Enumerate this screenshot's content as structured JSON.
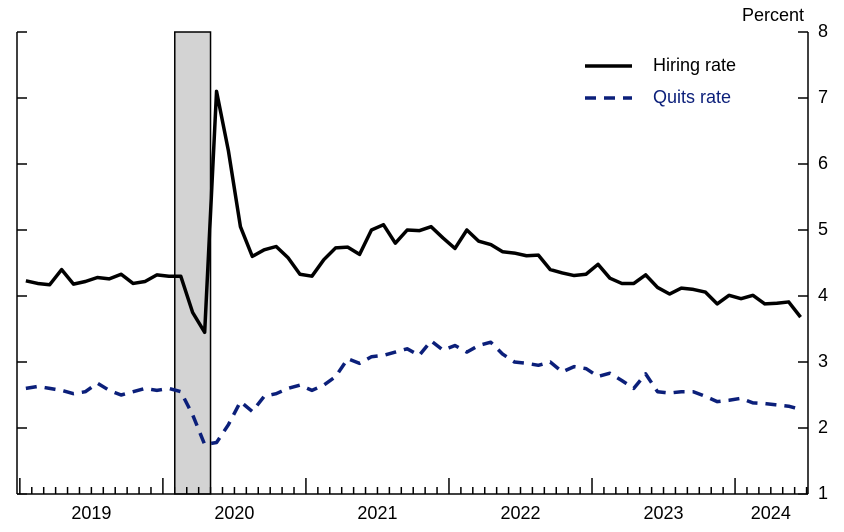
{
  "chart_data": {
    "type": "line",
    "y_axis_label": "Percent",
    "x": [
      2019.042,
      2019.125,
      2019.208,
      2019.292,
      2019.375,
      2019.458,
      2019.542,
      2019.625,
      2019.708,
      2019.792,
      2019.875,
      2019.958,
      2020.042,
      2020.125,
      2020.208,
      2020.292,
      2020.375,
      2020.458,
      2020.542,
      2020.625,
      2020.708,
      2020.792,
      2020.875,
      2020.958,
      2021.042,
      2021.125,
      2021.208,
      2021.292,
      2021.375,
      2021.458,
      2021.542,
      2021.625,
      2021.708,
      2021.792,
      2021.875,
      2021.958,
      2022.042,
      2022.125,
      2022.208,
      2022.292,
      2022.375,
      2022.458,
      2022.542,
      2022.625,
      2022.708,
      2022.792,
      2022.875,
      2022.958,
      2023.042,
      2023.125,
      2023.208,
      2023.292,
      2023.375,
      2023.458,
      2023.542,
      2023.625,
      2023.708,
      2023.792,
      2023.875,
      2023.958,
      2024.042,
      2024.125,
      2024.208,
      2024.292,
      2024.375,
      2024.458
    ],
    "series": [
      {
        "name": "Hiring rate",
        "color": "#000000",
        "dash": false,
        "values": [
          4.23,
          4.19,
          4.17,
          4.4,
          4.18,
          4.22,
          4.28,
          4.26,
          4.33,
          4.19,
          4.22,
          4.32,
          4.3,
          4.3,
          3.75,
          3.45,
          7.1,
          6.2,
          5.05,
          4.6,
          4.7,
          4.75,
          4.58,
          4.33,
          4.3,
          4.55,
          4.73,
          4.74,
          4.63,
          5.0,
          5.08,
          4.8,
          5.0,
          4.99,
          5.05,
          4.88,
          4.72,
          5.0,
          4.83,
          4.78,
          4.67,
          4.65,
          4.61,
          4.62,
          4.4,
          4.35,
          4.31,
          4.33,
          4.48,
          4.27,
          4.19,
          4.19,
          4.32,
          4.13,
          4.03,
          4.12,
          4.1,
          4.06,
          3.88,
          4.01,
          3.96,
          4.01,
          3.88,
          3.89,
          3.91,
          3.68
        ]
      },
      {
        "name": "Quits rate",
        "color": "#0b1f7a",
        "dash": true,
        "values": [
          2.6,
          2.63,
          2.6,
          2.57,
          2.52,
          2.55,
          2.68,
          2.57,
          2.5,
          2.55,
          2.6,
          2.57,
          2.6,
          2.55,
          2.2,
          1.75,
          1.78,
          2.05,
          2.4,
          2.25,
          2.48,
          2.52,
          2.6,
          2.65,
          2.57,
          2.65,
          2.78,
          3.05,
          2.98,
          3.08,
          3.1,
          3.15,
          3.2,
          3.1,
          3.32,
          3.18,
          3.25,
          3.15,
          3.25,
          3.3,
          3.12,
          3.0,
          2.98,
          2.95,
          3.0,
          2.85,
          2.93,
          2.9,
          2.78,
          2.83,
          2.72,
          2.6,
          2.82,
          2.55,
          2.53,
          2.55,
          2.55,
          2.48,
          2.4,
          2.42,
          2.45,
          2.38,
          2.37,
          2.35,
          2.33,
          2.28
        ]
      }
    ],
    "shaded_period": {
      "start": 2020.083,
      "end": 2020.333,
      "color": "#d3d3d3"
    },
    "xlim": [
      2018.98,
      2024.51
    ],
    "xticks": [
      {
        "value": 2019.5,
        "label": "2019"
      },
      {
        "value": 2020.5,
        "label": "2020"
      },
      {
        "value": 2021.5,
        "label": "2021"
      },
      {
        "value": 2022.5,
        "label": "2022"
      },
      {
        "value": 2023.5,
        "label": "2023"
      },
      {
        "value": 2024.25,
        "label": "2024"
      }
    ],
    "ylim": [
      1,
      8
    ],
    "yticks": [
      1,
      2,
      3,
      4,
      5,
      6,
      7,
      8
    ],
    "legend": "top-right"
  }
}
